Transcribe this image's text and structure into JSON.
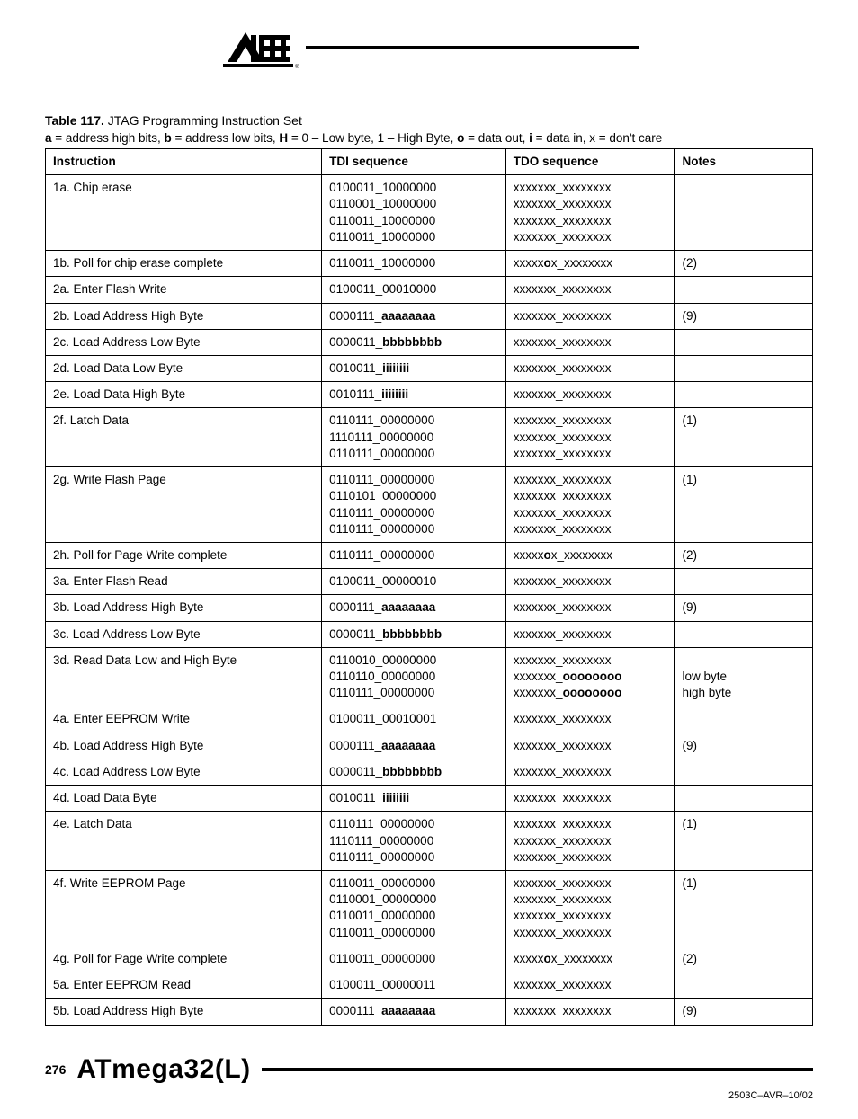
{
  "header": {
    "logo_text": "ATMEL",
    "logo_registered": "®"
  },
  "caption": {
    "table_label": "Table 117.",
    "table_title": "JTAG Programming Instruction Set"
  },
  "legend": {
    "parts": [
      {
        "b": "a"
      },
      {
        "t": " = address high bits, "
      },
      {
        "b": "b"
      },
      {
        "t": " = address low bits, "
      },
      {
        "b": "H"
      },
      {
        "t": " = 0 – Low byte, 1 – High Byte, "
      },
      {
        "b": "o"
      },
      {
        "t": " = data out, "
      },
      {
        "b": "i"
      },
      {
        "t": " = data in, x = don't care"
      }
    ]
  },
  "table": {
    "headers": {
      "instruction": "Instruction",
      "tdi": "TDI sequence",
      "tdo": "TDO sequence",
      "notes": "Notes"
    },
    "rows": [
      {
        "instruction": "1a. Chip erase",
        "tdi": [
          [
            {
              "t": "0100011_10000000"
            }
          ],
          [
            {
              "t": "0110001_10000000"
            }
          ],
          [
            {
              "t": "0110011_10000000"
            }
          ],
          [
            {
              "t": "0110011_10000000"
            }
          ]
        ],
        "tdo": [
          [
            {
              "t": "xxxxxxx_xxxxxxxx"
            }
          ],
          [
            {
              "t": "xxxxxxx_xxxxxxxx"
            }
          ],
          [
            {
              "t": "xxxxxxx_xxxxxxxx"
            }
          ],
          [
            {
              "t": "xxxxxxx_xxxxxxxx"
            }
          ]
        ],
        "notes": ""
      },
      {
        "instruction": "1b. Poll for chip erase complete",
        "tdi": [
          [
            {
              "t": "0110011_10000000"
            }
          ]
        ],
        "tdo": [
          [
            {
              "t": "xxxxx"
            },
            {
              "b": "o"
            },
            {
              "t": "x_xxxxxxxx"
            }
          ]
        ],
        "notes": "(2)"
      },
      {
        "instruction": "2a. Enter Flash Write",
        "tdi": [
          [
            {
              "t": "0100011_00010000"
            }
          ]
        ],
        "tdo": [
          [
            {
              "t": "xxxxxxx_xxxxxxxx"
            }
          ]
        ],
        "notes": ""
      },
      {
        "instruction": "2b. Load Address High Byte",
        "tdi": [
          [
            {
              "t": "0000111_"
            },
            {
              "b": "aaaaaaaa"
            }
          ]
        ],
        "tdo": [
          [
            {
              "t": "xxxxxxx_xxxxxxxx"
            }
          ]
        ],
        "notes": "(9)"
      },
      {
        "instruction": "2c. Load Address Low Byte",
        "tdi": [
          [
            {
              "t": "0000011_"
            },
            {
              "b": "bbbbbbbb"
            }
          ]
        ],
        "tdo": [
          [
            {
              "t": "xxxxxxx_xxxxxxxx"
            }
          ]
        ],
        "notes": ""
      },
      {
        "instruction": "2d. Load Data Low Byte",
        "tdi": [
          [
            {
              "t": "0010011_"
            },
            {
              "b": "iiiiiiii"
            }
          ]
        ],
        "tdo": [
          [
            {
              "t": "xxxxxxx_xxxxxxxx"
            }
          ]
        ],
        "notes": ""
      },
      {
        "instruction": "2e. Load Data High Byte",
        "tdi": [
          [
            {
              "t": "0010111_"
            },
            {
              "b": "iiiiiiii"
            }
          ]
        ],
        "tdo": [
          [
            {
              "t": "xxxxxxx_xxxxxxxx"
            }
          ]
        ],
        "notes": ""
      },
      {
        "instruction": "2f. Latch Data",
        "tdi": [
          [
            {
              "t": "0110111_00000000"
            }
          ],
          [
            {
              "t": "1110111_00000000"
            }
          ],
          [
            {
              "t": "0110111_00000000"
            }
          ]
        ],
        "tdo": [
          [
            {
              "t": "xxxxxxx_xxxxxxxx"
            }
          ],
          [
            {
              "t": "xxxxxxx_xxxxxxxx"
            }
          ],
          [
            {
              "t": "xxxxxxx_xxxxxxxx"
            }
          ]
        ],
        "notes": "(1)"
      },
      {
        "instruction": "2g. Write Flash Page",
        "tdi": [
          [
            {
              "t": "0110111_00000000"
            }
          ],
          [
            {
              "t": "0110101_00000000"
            }
          ],
          [
            {
              "t": "0110111_00000000"
            }
          ],
          [
            {
              "t": "0110111_00000000"
            }
          ]
        ],
        "tdo": [
          [
            {
              "t": "xxxxxxx_xxxxxxxx"
            }
          ],
          [
            {
              "t": "xxxxxxx_xxxxxxxx"
            }
          ],
          [
            {
              "t": "xxxxxxx_xxxxxxxx"
            }
          ],
          [
            {
              "t": "xxxxxxx_xxxxxxxx"
            }
          ]
        ],
        "notes": "(1)"
      },
      {
        "instruction": "2h. Poll for Page Write complete",
        "tdi": [
          [
            {
              "t": "0110111_00000000"
            }
          ]
        ],
        "tdo": [
          [
            {
              "t": "xxxxx"
            },
            {
              "b": "o"
            },
            {
              "t": "x_xxxxxxxx"
            }
          ]
        ],
        "notes": "(2)"
      },
      {
        "instruction": "3a. Enter Flash Read",
        "tdi": [
          [
            {
              "t": "0100011_00000010"
            }
          ]
        ],
        "tdo": [
          [
            {
              "t": "xxxxxxx_xxxxxxxx"
            }
          ]
        ],
        "notes": ""
      },
      {
        "instruction": "3b. Load Address High Byte",
        "tdi": [
          [
            {
              "t": "0000111_"
            },
            {
              "b": "aaaaaaaa"
            }
          ]
        ],
        "tdo": [
          [
            {
              "t": "xxxxxxx_xxxxxxxx"
            }
          ]
        ],
        "notes": "(9)"
      },
      {
        "instruction": "3c. Load Address Low Byte",
        "tdi": [
          [
            {
              "t": "0000011_"
            },
            {
              "b": "bbbbbbbb"
            }
          ]
        ],
        "tdo": [
          [
            {
              "t": "xxxxxxx_xxxxxxxx"
            }
          ]
        ],
        "notes": ""
      },
      {
        "instruction": "3d. Read Data Low and High Byte",
        "tdi": [
          [
            {
              "t": "0110010_00000000"
            }
          ],
          [
            {
              "t": "0110110_00000000"
            }
          ],
          [
            {
              "t": "0110111_00000000"
            }
          ]
        ],
        "tdo": [
          [
            {
              "t": "xxxxxxx_xxxxxxxx"
            }
          ],
          [
            {
              "t": "xxxxxxx_"
            },
            {
              "b": "oooooooo"
            }
          ],
          [
            {
              "t": "xxxxxxx_"
            },
            {
              "b": "oooooooo"
            }
          ]
        ],
        "notes_lines": [
          "",
          "low byte",
          "high byte"
        ]
      },
      {
        "instruction": "4a. Enter EEPROM Write",
        "tdi": [
          [
            {
              "t": "0100011_00010001"
            }
          ]
        ],
        "tdo": [
          [
            {
              "t": "xxxxxxx_xxxxxxxx"
            }
          ]
        ],
        "notes": ""
      },
      {
        "instruction": "4b. Load Address High Byte",
        "tdi": [
          [
            {
              "t": "0000111_"
            },
            {
              "b": "aaaaaaaa"
            }
          ]
        ],
        "tdo": [
          [
            {
              "t": "xxxxxxx_xxxxxxxx"
            }
          ]
        ],
        "notes": "(9)"
      },
      {
        "instruction": "4c. Load Address Low Byte",
        "tdi": [
          [
            {
              "t": "0000011_"
            },
            {
              "b": "bbbbbbbb"
            }
          ]
        ],
        "tdo": [
          [
            {
              "t": "xxxxxxx_xxxxxxxx"
            }
          ]
        ],
        "notes": ""
      },
      {
        "instruction": "4d. Load Data Byte",
        "tdi": [
          [
            {
              "t": "0010011_"
            },
            {
              "b": "iiiiiiii"
            }
          ]
        ],
        "tdo": [
          [
            {
              "t": "xxxxxxx_xxxxxxxx"
            }
          ]
        ],
        "notes": ""
      },
      {
        "instruction": "4e. Latch Data",
        "tdi": [
          [
            {
              "t": "0110111_00000000"
            }
          ],
          [
            {
              "t": "1110111_00000000"
            }
          ],
          [
            {
              "t": "0110111_00000000"
            }
          ]
        ],
        "tdo": [
          [
            {
              "t": "xxxxxxx_xxxxxxxx"
            }
          ],
          [
            {
              "t": "xxxxxxx_xxxxxxxx"
            }
          ],
          [
            {
              "t": "xxxxxxx_xxxxxxxx"
            }
          ]
        ],
        "notes": "(1)"
      },
      {
        "instruction": "4f. Write EEPROM Page",
        "tdi": [
          [
            {
              "t": "0110011_00000000"
            }
          ],
          [
            {
              "t": "0110001_00000000"
            }
          ],
          [
            {
              "t": "0110011_00000000"
            }
          ],
          [
            {
              "t": "0110011_00000000"
            }
          ]
        ],
        "tdo": [
          [
            {
              "t": "xxxxxxx_xxxxxxxx"
            }
          ],
          [
            {
              "t": "xxxxxxx_xxxxxxxx"
            }
          ],
          [
            {
              "t": "xxxxxxx_xxxxxxxx"
            }
          ],
          [
            {
              "t": "xxxxxxx_xxxxxxxx"
            }
          ]
        ],
        "notes": "(1)"
      },
      {
        "instruction": "4g. Poll for Page Write complete",
        "tdi": [
          [
            {
              "t": "0110011_00000000"
            }
          ]
        ],
        "tdo": [
          [
            {
              "t": "xxxxx"
            },
            {
              "b": "o"
            },
            {
              "t": "x_xxxxxxxx"
            }
          ]
        ],
        "notes": "(2)"
      },
      {
        "instruction": "5a. Enter EEPROM Read",
        "tdi": [
          [
            {
              "t": "0100011_00000011"
            }
          ]
        ],
        "tdo": [
          [
            {
              "t": "xxxxxxx_xxxxxxxx"
            }
          ]
        ],
        "notes": ""
      },
      {
        "instruction": "5b. Load Address High Byte",
        "tdi": [
          [
            {
              "t": "0000111_"
            },
            {
              "b": "aaaaaaaa"
            }
          ]
        ],
        "tdo": [
          [
            {
              "t": "xxxxxxx_xxxxxxxx"
            }
          ]
        ],
        "notes": "(9)"
      }
    ]
  },
  "footer": {
    "page_number": "276",
    "product_name": "ATmega32(L)",
    "doc_id": "2503C–AVR–10/02"
  }
}
